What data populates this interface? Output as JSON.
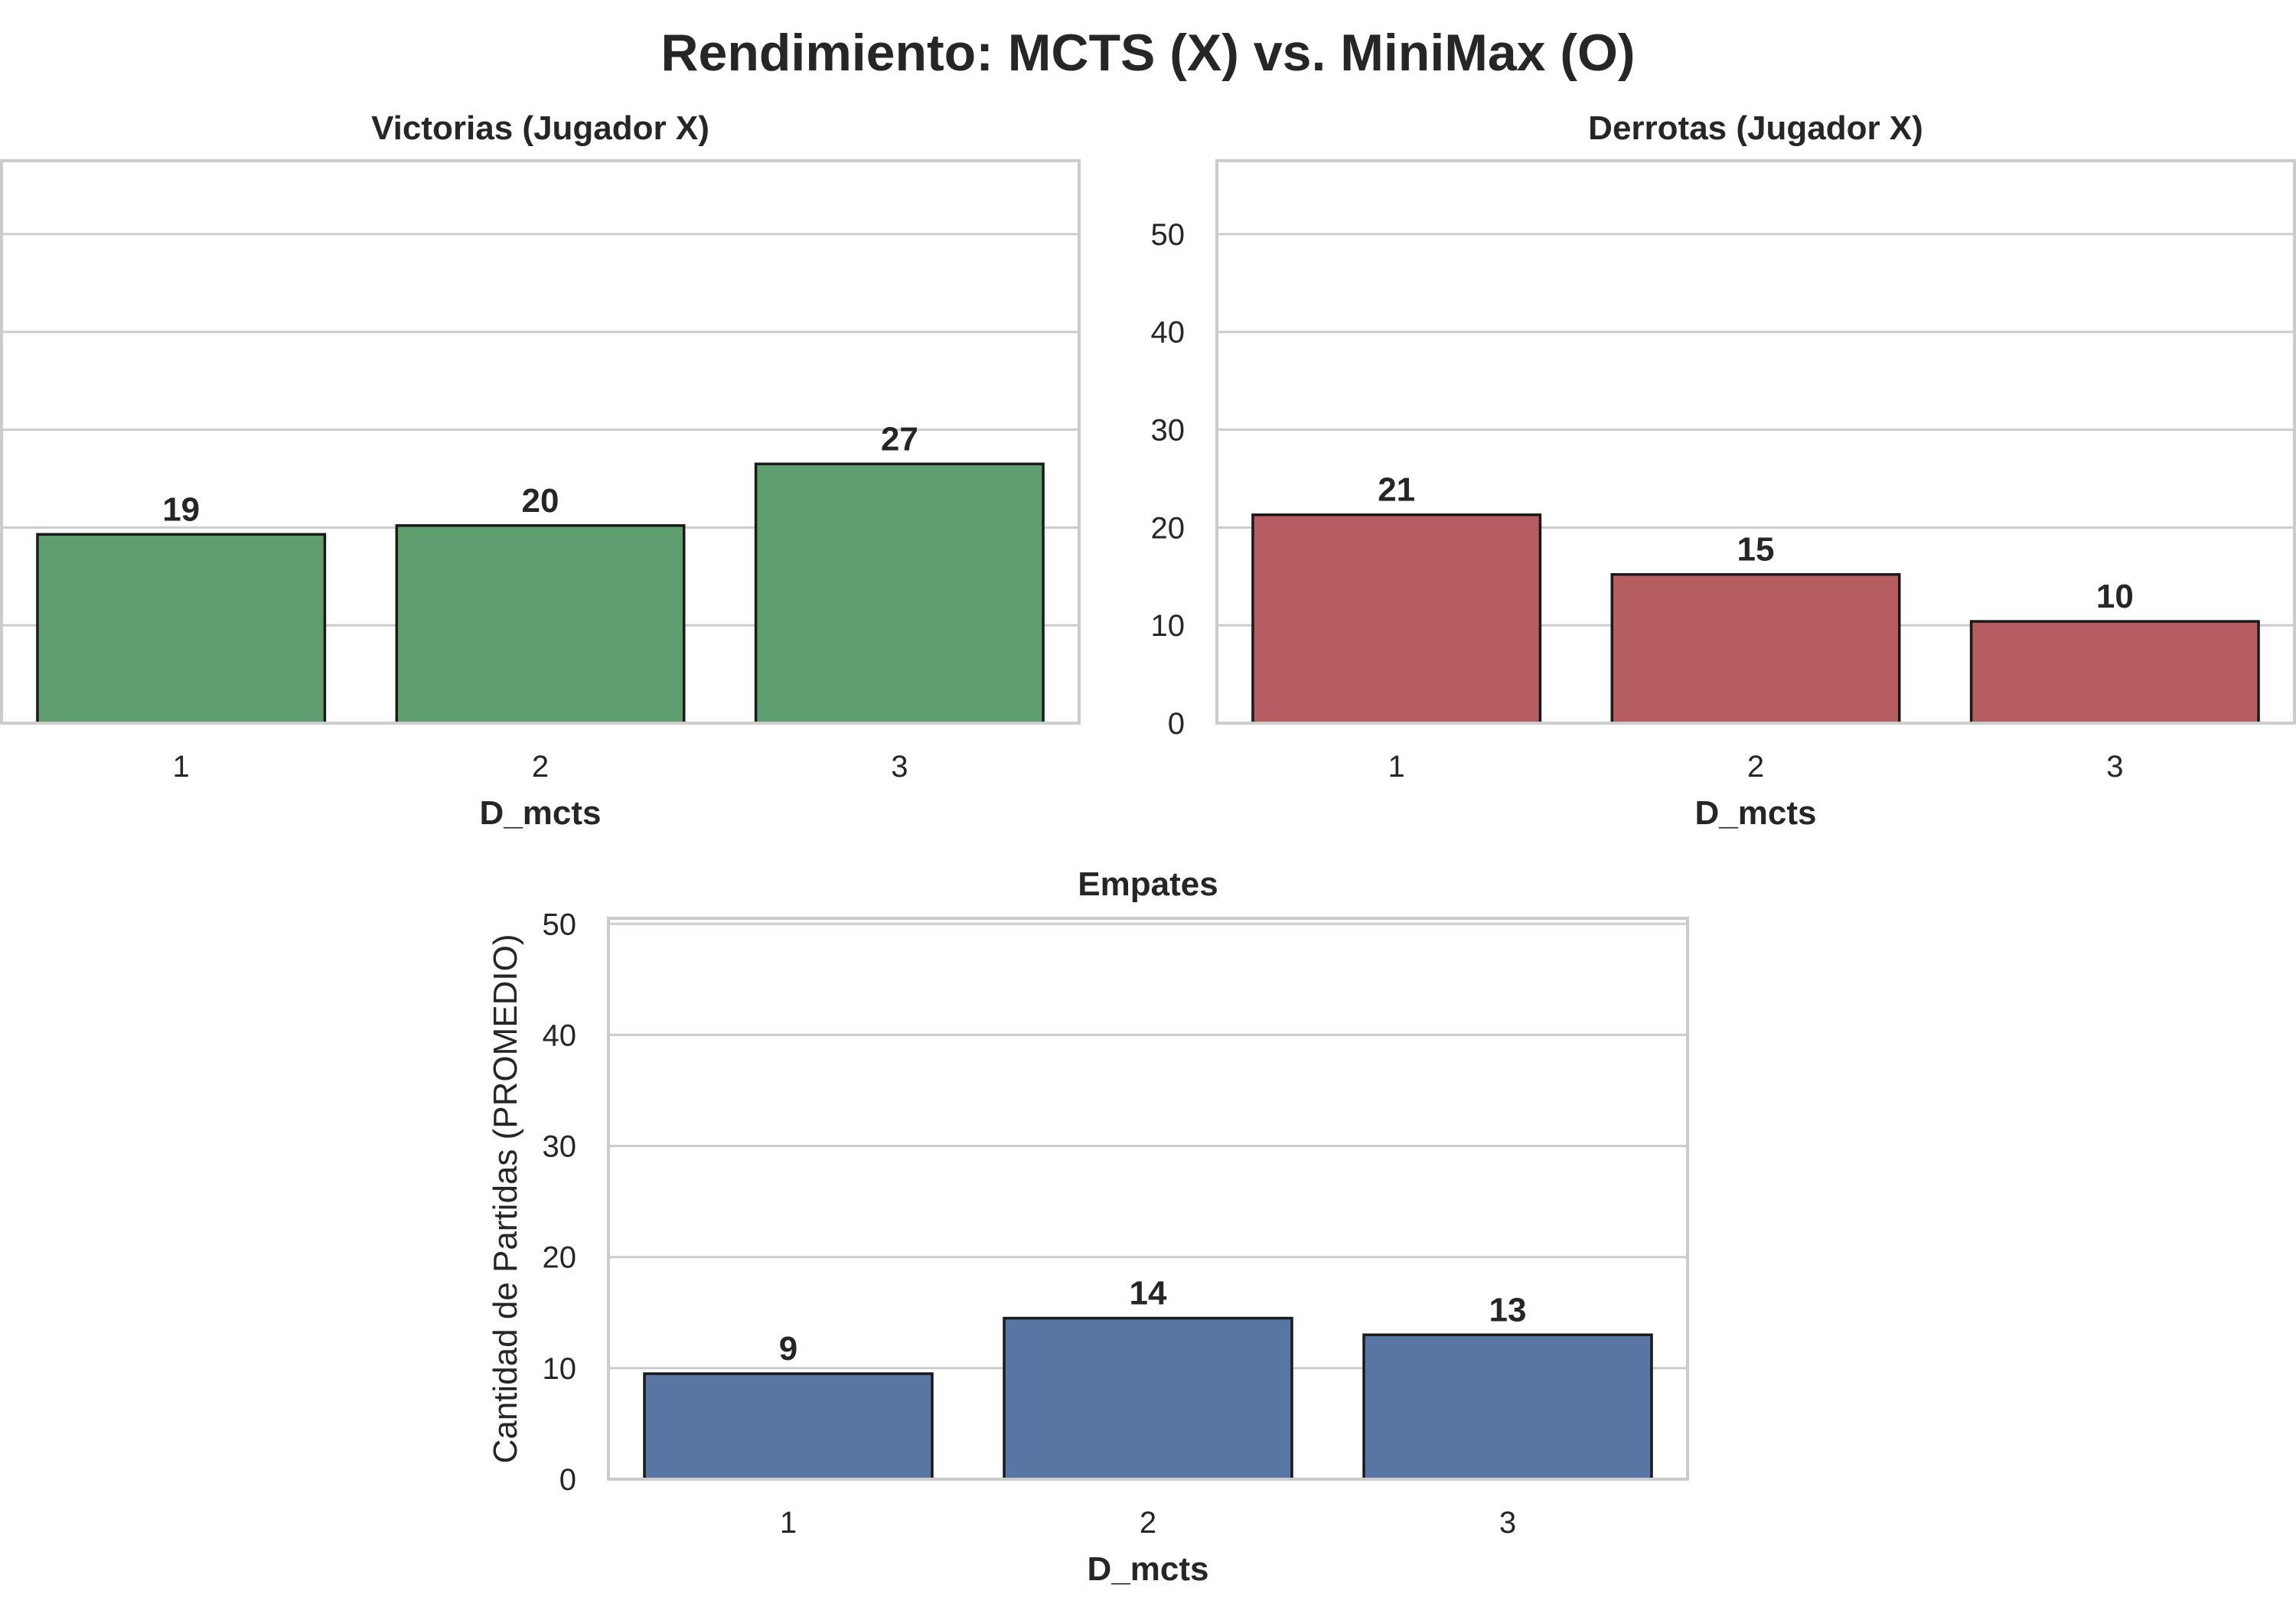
{
  "title": "Rendimiento: MCTS (X) vs. MiniMax (O)",
  "chart_data": [
    {
      "type": "bar",
      "title": "Victorias (Jugador X)",
      "xlabel": "D_mcts",
      "ylabel": "",
      "categories": [
        "1",
        "2",
        "3"
      ],
      "values": [
        19.3,
        20.2,
        26.5
      ],
      "bar_labels": [
        "19",
        "20",
        "27"
      ],
      "ylim": [
        0,
        57.5
      ],
      "yticks": [
        0,
        10,
        20,
        30,
        40,
        50
      ],
      "show_ytick_labels": false,
      "color": "#5f9e6e",
      "grid": true
    },
    {
      "type": "bar",
      "title": "Derrotas (Jugador X)",
      "xlabel": "D_mcts",
      "ylabel": "",
      "categories": [
        "1",
        "2",
        "3"
      ],
      "values": [
        21.3,
        15.2,
        10.4
      ],
      "bar_labels": [
        "21",
        "15",
        "10"
      ],
      "ylim": [
        0,
        57.5
      ],
      "yticks": [
        0,
        10,
        20,
        30,
        40,
        50
      ],
      "show_ytick_labels": true,
      "color": "#b55d60",
      "grid": true
    },
    {
      "type": "bar",
      "title": "Empates",
      "xlabel": "D_mcts",
      "ylabel": "Cantidad de Partidas (PROMEDIO)",
      "categories": [
        "1",
        "2",
        "3"
      ],
      "values": [
        9.5,
        14.5,
        13.0
      ],
      "bar_labels": [
        "9",
        "14",
        "13"
      ],
      "ylim": [
        0,
        50.5
      ],
      "yticks": [
        0,
        10,
        20,
        30,
        40,
        50
      ],
      "show_ytick_labels": true,
      "color": "#5975a4",
      "grid": true
    }
  ]
}
